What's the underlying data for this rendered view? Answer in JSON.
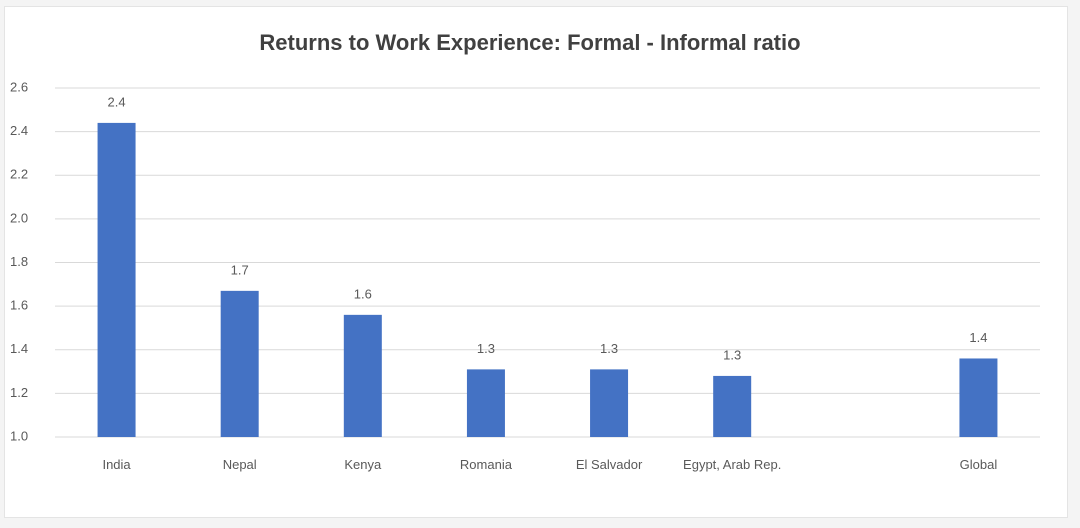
{
  "chart_data": {
    "type": "bar",
    "title": "Returns to Work Experience: Formal - Informal ratio",
    "categories": [
      "India",
      "Nepal",
      "Kenya",
      "Romania",
      "El Salvador",
      "Egypt, Arab Rep.",
      null,
      "Global"
    ],
    "values": [
      2.44,
      1.67,
      1.56,
      1.31,
      1.31,
      1.28,
      null,
      1.36
    ],
    "value_labels": [
      "2.4",
      "1.7",
      "1.6",
      "1.3",
      "1.3",
      "1.3",
      null,
      "1.4"
    ],
    "color": "#4472c4",
    "ylim": [
      1,
      2.6
    ],
    "yticks": [
      {
        "value": 1,
        "label": "1.0"
      },
      1.2,
      1.4,
      1.6,
      1.8,
      {
        "value": 2,
        "label": "2.0"
      },
      2.2,
      2.4,
      2.6
    ],
    "grid": true
  }
}
